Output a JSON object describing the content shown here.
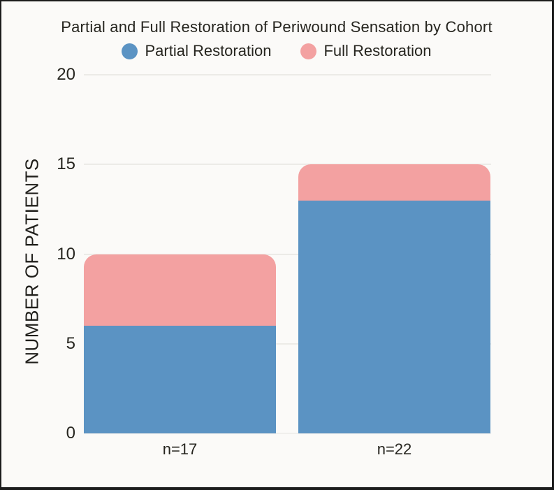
{
  "chart_data": {
    "type": "bar",
    "stacked": true,
    "title": "Partial and Full Restoration of Periwound Sensation by Cohort",
    "categories": [
      "n=17",
      "n=22"
    ],
    "series": [
      {
        "name": "Partial Restoration",
        "values": [
          6,
          13
        ],
        "color": "#5b93c3"
      },
      {
        "name": "Full Restoration",
        "values": [
          4,
          2
        ],
        "color": "#f3a1a1"
      }
    ],
    "stack_totals": [
      10,
      15
    ],
    "ylabel": "NUMBER OF PATIENTS",
    "xlabel": "",
    "ylim": [
      0,
      20
    ],
    "yticks": [
      0,
      5,
      10,
      15,
      20
    ],
    "grid": true,
    "legend_position": "top-center"
  },
  "colors": {
    "background": "#fbfaf8",
    "frame_border": "#1c1c1c",
    "gridline": "#ecebe7",
    "baseline": "#f0efec",
    "text": "#26251f"
  }
}
